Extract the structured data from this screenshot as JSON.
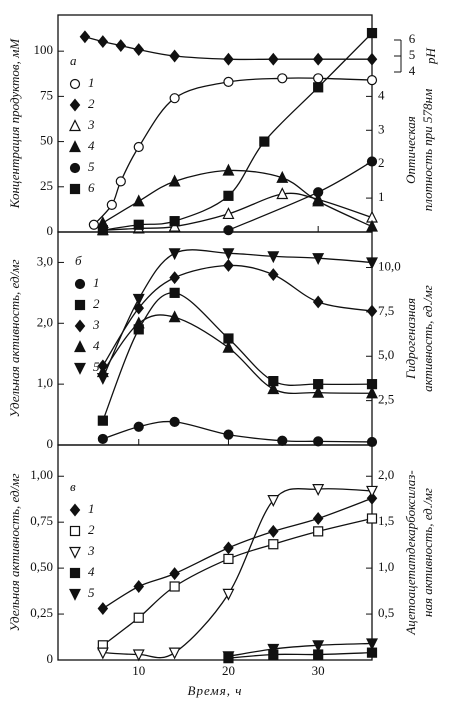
{
  "chart_data": [
    {
      "type": "line",
      "panel_label": "а",
      "ylabel": "Концентрация продуктов, мМ",
      "y2label": [
        "Оптическая",
        "плотность при 578нм"
      ],
      "xlim": [
        1,
        36
      ],
      "xticks": [
        10,
        20,
        30
      ],
      "ylim": [
        0,
        120
      ],
      "yticks": [
        0,
        25,
        50,
        75,
        100
      ],
      "y2lim": [
        0,
        6.4
      ],
      "y2ticks": [
        1,
        2,
        3,
        4
      ],
      "y3label": "pH",
      "y3lim": [
        4,
        6
      ],
      "y3ticks": [
        4,
        5,
        6
      ],
      "series": [
        {
          "name": "1",
          "marker": "circle",
          "filled": false,
          "x": [
            5,
            7,
            8,
            10,
            14,
            20,
            26,
            30,
            36
          ],
          "values": [
            4,
            15,
            28,
            47,
            74,
            83,
            85,
            85,
            84
          ]
        },
        {
          "name": "2",
          "marker": "diamond",
          "filled": true,
          "axis": "y3",
          "x": [
            4,
            6,
            8,
            10,
            14,
            20,
            25,
            30,
            36
          ],
          "values": [
            6.2,
            5.9,
            5.65,
            5.4,
            5.0,
            4.8,
            4.8,
            4.8,
            4.8
          ]
        },
        {
          "name": "3",
          "marker": "triangle",
          "filled": false,
          "x": [
            6,
            10,
            14,
            20,
            26,
            30,
            36
          ],
          "values": [
            1,
            2,
            3,
            10,
            21,
            18,
            8
          ]
        },
        {
          "name": "4",
          "marker": "triangle",
          "filled": true,
          "x": [
            6,
            10,
            14,
            20,
            26,
            30,
            36
          ],
          "values": [
            5,
            17,
            28,
            34,
            30,
            17,
            3
          ]
        },
        {
          "name": "5",
          "marker": "circle",
          "filled": true,
          "x": [
            20,
            30,
            36
          ],
          "values": [
            1,
            22,
            39
          ]
        },
        {
          "name": "6",
          "marker": "square",
          "filled": true,
          "x": [
            6,
            10,
            14,
            20,
            24,
            30,
            36
          ],
          "values": [
            1,
            4,
            6,
            20,
            50,
            80,
            110
          ]
        }
      ]
    },
    {
      "type": "line",
      "panel_label": "б",
      "ylabel": "Удельная активность, ед/мг",
      "y2label": [
        "Гидрогеназная",
        "активность, ед./мг"
      ],
      "xlim": [
        1,
        36
      ],
      "xticks": [
        10,
        20,
        30
      ],
      "ylim": [
        0,
        3.5
      ],
      "yticks": [
        0,
        {
          "value": 1,
          "label": "1,0"
        },
        {
          "value": 2,
          "label": "2,0"
        },
        {
          "value": 3,
          "label": "3,0"
        }
      ],
      "y2lim": [
        0,
        12
      ],
      "y2ticks": [
        {
          "value": 2.5,
          "label": "2,5"
        },
        {
          "value": 5,
          "label": "5,0"
        },
        {
          "value": 7.5,
          "label": "7,5"
        },
        {
          "value": 10,
          "label": "10,0"
        }
      ],
      "series": [
        {
          "name": "1",
          "marker": "circle",
          "filled": true,
          "x": [
            6,
            10,
            14,
            20,
            26,
            30,
            36
          ],
          "values": [
            0.1,
            0.3,
            0.38,
            0.17,
            0.07,
            0.06,
            0.05
          ]
        },
        {
          "name": "2",
          "marker": "square",
          "filled": true,
          "x": [
            6,
            10,
            14,
            20,
            25,
            30,
            36
          ],
          "values": [
            0.4,
            1.9,
            2.5,
            1.75,
            1.05,
            1.0,
            1.0
          ]
        },
        {
          "name": "3",
          "marker": "diamond",
          "filled": true,
          "x": [
            6,
            10,
            14,
            20,
            25,
            30,
            36
          ],
          "values": [
            1.3,
            2.25,
            2.75,
            2.95,
            2.8,
            2.35,
            2.2
          ]
        },
        {
          "name": "4",
          "marker": "triangle",
          "filled": true,
          "x": [
            6,
            10,
            14,
            20,
            25,
            30,
            36
          ],
          "values": [
            1.2,
            2.0,
            2.1,
            1.6,
            0.92,
            0.86,
            0.85
          ]
        },
        {
          "name": "5",
          "marker": "triangle-down",
          "filled": true,
          "x": [
            6,
            10,
            14,
            20,
            25,
            30,
            36
          ],
          "values": [
            1.1,
            2.4,
            3.15,
            3.15,
            3.1,
            3.07,
            3.0
          ]
        }
      ]
    },
    {
      "type": "line",
      "panel_label": "в",
      "xlabel": "Время,  ч",
      "ylabel": "Удельная активность, ед/мг",
      "y2label": [
        "Ацетоацетатдекарбоксилаз-",
        "ная активность, ед./мг"
      ],
      "xlim": [
        1,
        36
      ],
      "xticks": [
        10,
        20,
        30
      ],
      "ylim": [
        0,
        1.17
      ],
      "yticks": [
        0,
        {
          "value": 0.25,
          "label": "0,25"
        },
        {
          "value": 0.5,
          "label": "0,50"
        },
        {
          "value": 0.75,
          "label": "0,75"
        },
        {
          "value": 1,
          "label": "1,00"
        }
      ],
      "y2lim": [
        0,
        2.34
      ],
      "y2ticks": [
        {
          "value": 0.5,
          "label": "0,5"
        },
        {
          "value": 1,
          "label": "1,0"
        },
        {
          "value": 1.5,
          "label": "1,5"
        },
        {
          "value": 2,
          "label": "2,0"
        }
      ],
      "series": [
        {
          "name": "1",
          "marker": "diamond",
          "filled": true,
          "x": [
            6,
            10,
            14,
            20,
            25,
            30,
            36
          ],
          "values": [
            0.28,
            0.4,
            0.47,
            0.61,
            0.7,
            0.77,
            0.88
          ]
        },
        {
          "name": "2",
          "marker": "square",
          "filled": false,
          "x": [
            6,
            10,
            14,
            20,
            25,
            30,
            36
          ],
          "values": [
            0.08,
            0.23,
            0.4,
            0.55,
            0.63,
            0.7,
            0.77
          ]
        },
        {
          "name": "3",
          "marker": "triangle-down",
          "filled": false,
          "x": [
            6,
            10,
            14,
            20,
            25,
            30,
            36
          ],
          "values": [
            0.04,
            0.03,
            0.04,
            0.36,
            0.87,
            0.93,
            0.92
          ]
        },
        {
          "name": "4",
          "marker": "square",
          "filled": true,
          "x": [
            20,
            25,
            30,
            36
          ],
          "values": [
            0.01,
            0.03,
            0.03,
            0.04
          ]
        },
        {
          "name": "5",
          "marker": "triangle-down",
          "filled": true,
          "x": [
            20,
            25,
            30,
            36
          ],
          "values": [
            0.02,
            0.06,
            0.08,
            0.09
          ]
        }
      ]
    }
  ]
}
